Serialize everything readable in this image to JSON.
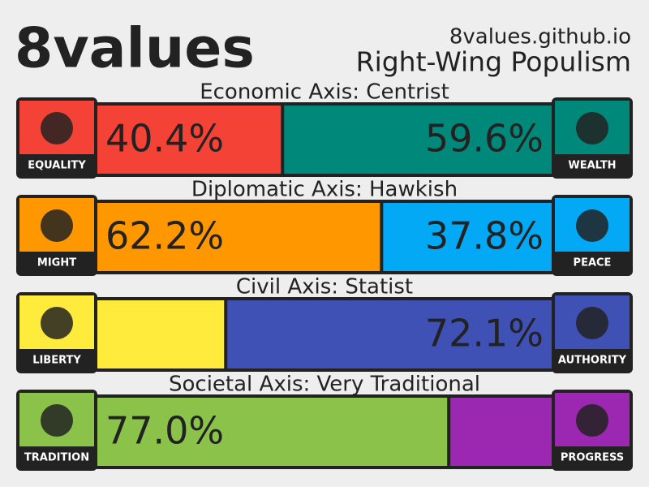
{
  "header": {
    "title": "8values",
    "site": "8values.github.io",
    "ideology": "Right-Wing Populism"
  },
  "axes": [
    {
      "heading": "Economic Axis: Centrist",
      "left_label": "EQUALITY",
      "right_label": "WEALTH",
      "values": [
        40.4,
        59.6
      ],
      "value_labels": [
        "40.4%",
        "59.6%"
      ],
      "colors": [
        "#f44336",
        "#00897b"
      ]
    },
    {
      "heading": "Diplomatic Axis: Hawkish",
      "left_label": "MIGHT",
      "right_label": "PEACE",
      "values": [
        62.2,
        37.8
      ],
      "value_labels": [
        "62.2%",
        "37.8%"
      ],
      "colors": [
        "#ff9800",
        "#03a9f4"
      ]
    },
    {
      "heading": "Civil Axis: Statist",
      "left_label": "LIBERTY",
      "right_label": "AUTHORITY",
      "values": [
        27.9,
        72.1
      ],
      "value_labels": [
        null,
        "72.1%"
      ],
      "colors": [
        "#ffeb3b",
        "#3f51b5"
      ]
    },
    {
      "heading": "Societal Axis: Very Traditional",
      "left_label": "TRADITION",
      "right_label": "PROGRESS",
      "values": [
        77.0,
        23.0
      ],
      "value_labels": [
        "77.0%",
        null
      ],
      "colors": [
        "#8bc34a",
        "#9c27b0"
      ]
    }
  ]
}
